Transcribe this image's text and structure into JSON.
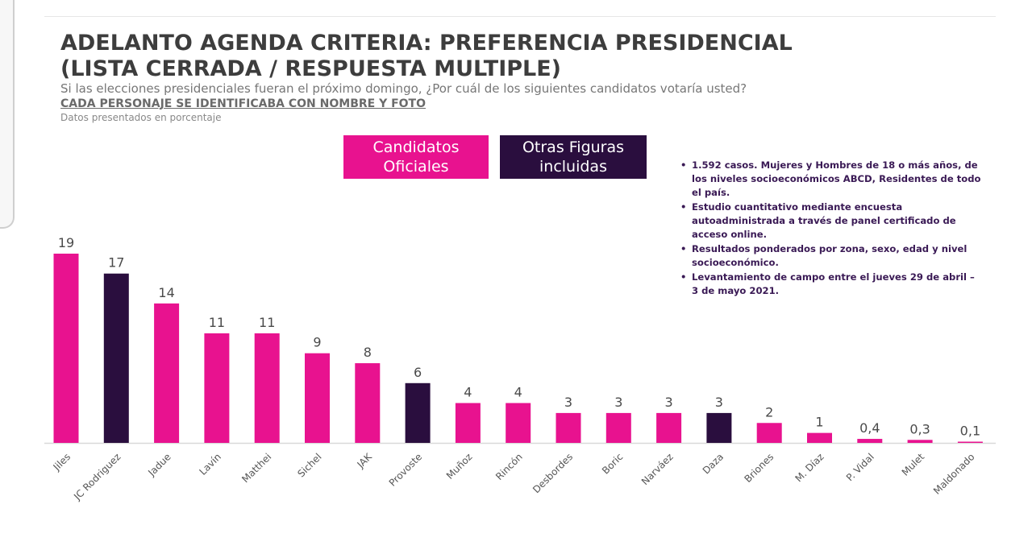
{
  "header": {
    "title_line1": "ADELANTO AGENDA CRITERIA: PREFERENCIA PRESIDENCIAL",
    "title_line2": "(LISTA CERRADA / RESPUESTA MULTIPLE)",
    "subtitle": "Si las elecciones presidenciales fueran el próximo domingo, ¿Por cuál de los siguientes candidatos votaría usted?",
    "note": "CADA PERSONAJE SE IDENTIFICABA CON NOMBRE Y FOTO",
    "source": "Datos presentados en porcentaje"
  },
  "legend": {
    "oficial": "Candidatos\nOficiales",
    "otras": "Otras Figuras\nincluidas"
  },
  "methodology": [
    "1.592 casos. Mujeres y Hombres de 18 o más años, de los niveles socioeconómicos ABCD, Residentes de todo el país.",
    "Estudio cuantitativo mediante encuesta autoadministrada a través de panel certificado de acceso online.",
    "Resultados ponderados por zona, sexo, edad y nivel socioeconómico.",
    "Levantamiento de campo entre el jueves 29 de abril – 3 de mayo 2021."
  ],
  "colors": {
    "oficial": "#e8128f",
    "otras": "#2a0e3e",
    "axis": "#d9d9d9"
  },
  "chart_data": {
    "type": "bar",
    "title": "ADELANTO AGENDA CRITERIA: PREFERENCIA PRESIDENCIAL (LISTA CERRADA / RESPUESTA MULTIPLE)",
    "xlabel": "",
    "ylabel": "",
    "ylim": [
      0,
      19
    ],
    "grid": false,
    "categories": [
      "Jiles",
      "JC Rodriguez",
      "Jadue",
      "Lavín",
      "Matthei",
      "Sichel",
      "JAK",
      "Provoste",
      "Muñoz",
      "Rincón",
      "Desbordes",
      "Boric",
      "Narváez",
      "Daza",
      "Briones",
      "M. Díaz",
      "P. Vidal",
      "Mulet",
      "Maldonado"
    ],
    "values": [
      19,
      17,
      14,
      11,
      11,
      9,
      8,
      6,
      4,
      4,
      3,
      3,
      3,
      3,
      2,
      1,
      0.4,
      0.3,
      0.1
    ],
    "value_labels": [
      "19",
      "17",
      "14",
      "11",
      "11",
      "9",
      "8",
      "6",
      "4",
      "4",
      "3",
      "3",
      "3",
      "3",
      "2",
      "1",
      "0,4",
      "0,3",
      "0,1"
    ],
    "groups": [
      "oficial",
      "otras",
      "oficial",
      "oficial",
      "oficial",
      "oficial",
      "oficial",
      "otras",
      "oficial",
      "oficial",
      "oficial",
      "oficial",
      "oficial",
      "otras",
      "oficial",
      "oficial",
      "oficial",
      "oficial",
      "oficial"
    ],
    "series_names": {
      "oficial": "Candidatos Oficiales",
      "otras": "Otras Figuras incluidas"
    }
  }
}
